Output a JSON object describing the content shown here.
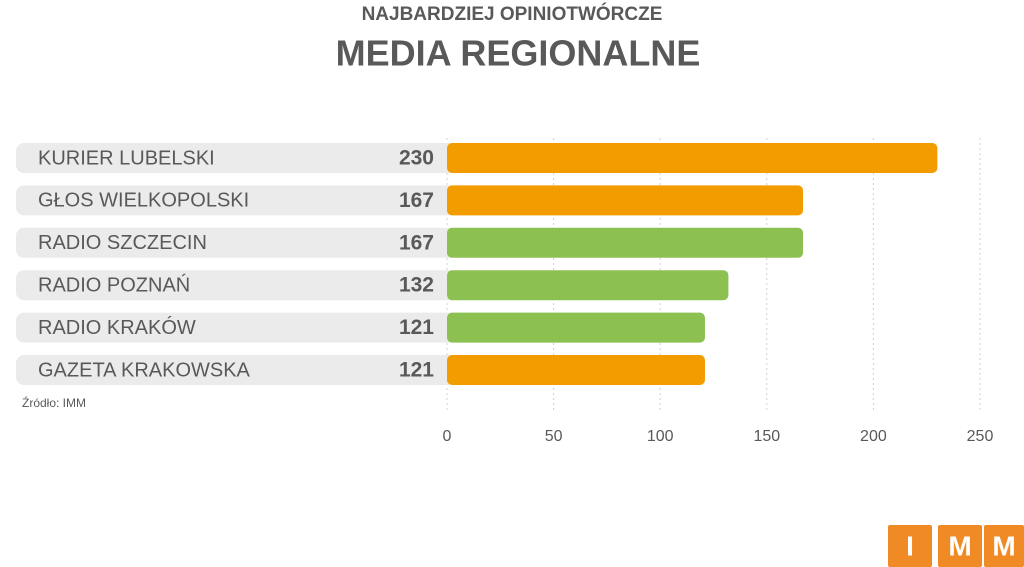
{
  "chart_data": {
    "type": "bar",
    "orientation": "horizontal",
    "subtitle": "NAJBARDZIEJ OPINIOTWÓRCZE",
    "title": "MEDIA REGIONALNE",
    "categories": [
      "KURIER LUBELSKI",
      "GŁOS WIELKOPOLSKI",
      "RADIO SZCZECIN",
      "RADIO POZNAŃ",
      "RADIO KRAKÓW",
      "GAZETA KRAKOWSKA"
    ],
    "values": [
      230,
      167,
      167,
      132,
      121,
      121
    ],
    "colors": [
      "#f29c00",
      "#f29c00",
      "#8cc152",
      "#8cc152",
      "#8cc152",
      "#f29c00"
    ],
    "xlim": [
      0,
      250
    ],
    "xticks": [
      0,
      50,
      100,
      150,
      200,
      250
    ],
    "grid": true,
    "source": "Źródło: IMM"
  },
  "logo": [
    "I",
    "M",
    "M"
  ]
}
